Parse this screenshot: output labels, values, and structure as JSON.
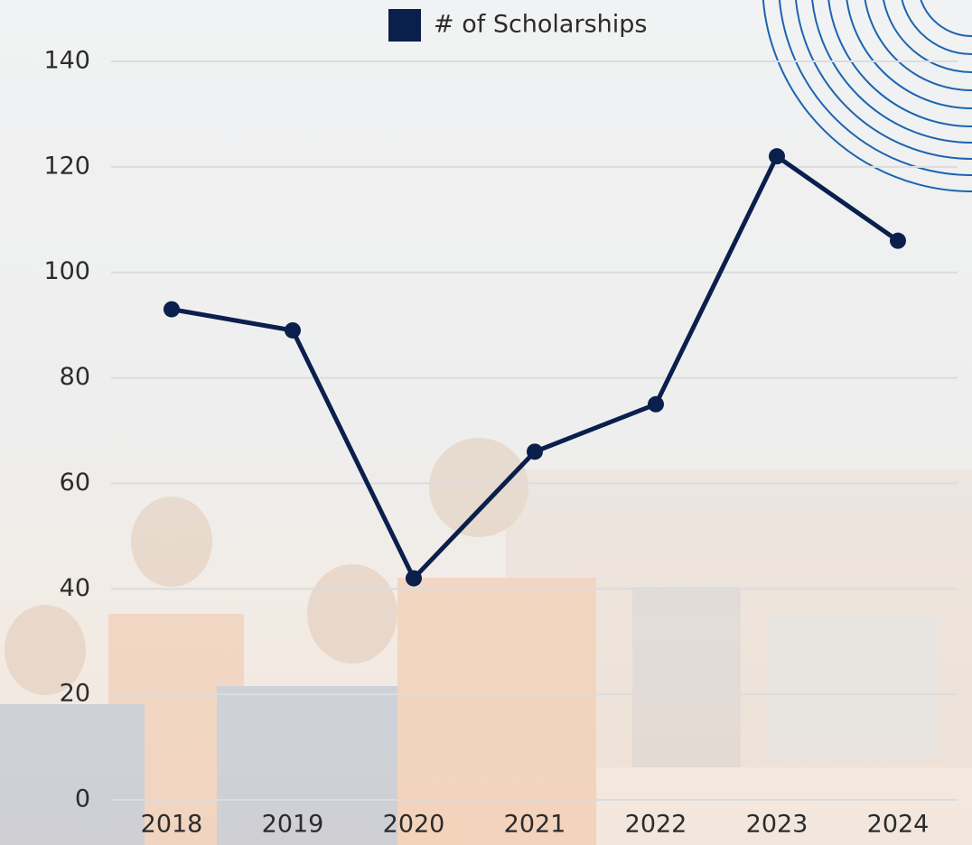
{
  "chart_data": {
    "type": "line",
    "categories": [
      "2018",
      "2019",
      "2020",
      "2021",
      "2022",
      "2023",
      "2024"
    ],
    "series": [
      {
        "name": "# of Scholarships",
        "color": "#0b1f4d",
        "values": [
          93,
          89,
          42,
          66,
          75,
          122,
          106
        ]
      }
    ],
    "ylim": [
      0,
      140
    ],
    "yticks": [
      0,
      20,
      40,
      60,
      80,
      100,
      120,
      140
    ],
    "grid": true,
    "legend": "top"
  }
}
